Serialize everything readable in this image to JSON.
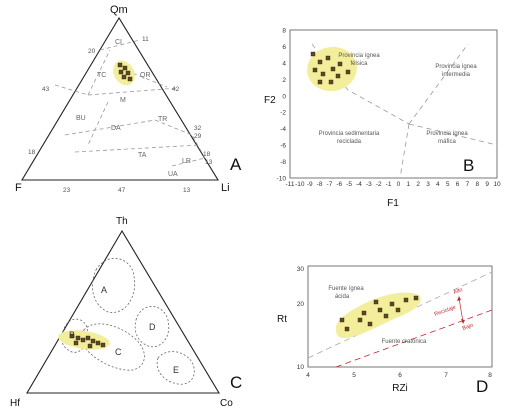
{
  "colors": {
    "field": "#f3ee9b",
    "sample_fill": "#5d4a1f",
    "guide_line": "#9a9a9a",
    "panel_d_line": "#c0282e"
  },
  "panel_a": {
    "letter": "A",
    "apex_top": "Qm",
    "apex_left": "F",
    "apex_right": "Li",
    "tick_20": "20",
    "tick_11": "11",
    "tick_43": "43",
    "tick_42": "42",
    "tick_32": "32",
    "tick_29": "29",
    "tick_18_left": "18",
    "tick_18_right": "18",
    "tick_13_right": "13",
    "tick_23": "23",
    "tick_47": "47",
    "tick_13_bottom": "13",
    "field_ci": "CI",
    "field_tc": "TC",
    "field_qr": "QR",
    "field_m": "M",
    "field_bu": "BU",
    "field_da": "DA",
    "field_tr": "TR",
    "field_ta": "TA",
    "field_lr": "LR",
    "field_ua": "UA"
  },
  "panel_b": {
    "letter": "B",
    "xlabel": "F1",
    "ylabel": "F2",
    "x_ticks": [
      "-11",
      "-10",
      "-9",
      "-8",
      "-7",
      "-6",
      "-5",
      "-4",
      "-3",
      "-2",
      "-1",
      "0",
      "1",
      "2",
      "3",
      "4",
      "5",
      "6",
      "7",
      "8",
      "9",
      "10"
    ],
    "y_ticks": [
      "8",
      "6",
      "4",
      "2",
      "0",
      "-2",
      "-4",
      "-6",
      "-8",
      "-10"
    ],
    "region_felsic_1": "Provincia ígnea",
    "region_felsic_2": "félsica",
    "region_intermediate_1": "Provincia ígnea",
    "region_intermediate_2": "intermedia",
    "region_sedimentary_1": "Provincia sedimentaria",
    "region_sedimentary_2": "reciclada",
    "region_mafic_1": "Provincia ígnea",
    "region_mafic_2": "máfica"
  },
  "panel_c": {
    "letter": "C",
    "apex_top": "Th",
    "apex_left": "Hf",
    "apex_right": "Co",
    "field_a": "A",
    "field_b": "B",
    "field_c": "C",
    "field_d": "D",
    "field_e": "E"
  },
  "panel_d": {
    "letter": "D",
    "xlabel": "RZi",
    "ylabel": "Rt",
    "x_ticks": [
      "4",
      "5",
      "6",
      "7",
      "8"
    ],
    "y_ticks": [
      "30",
      "20",
      "10"
    ],
    "region_igneous_1": "Fuente ígnea",
    "region_igneous_2": "ácida",
    "region_cratonic": "Fuente cratónica",
    "arrow_high": "Alto",
    "arrow_mid": "Reciclaje",
    "arrow_low": "Bajo"
  }
}
